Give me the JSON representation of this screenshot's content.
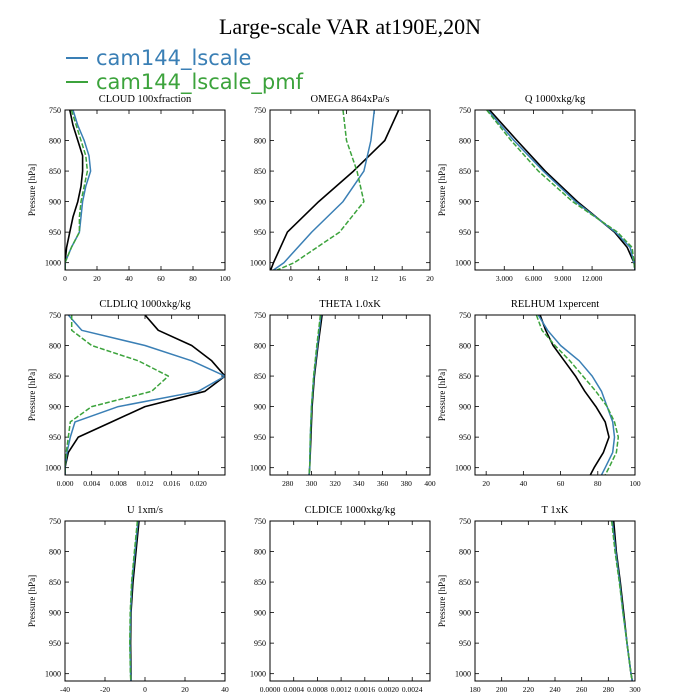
{
  "title": "Large-scale VAR at190E,20N",
  "legend": {
    "entries": [
      {
        "label": "cam144_lscale",
        "color": "#3a7fb5"
      },
      {
        "label": "cam144_lscale_pmf",
        "color": "#3ca33c"
      }
    ]
  },
  "colors": {
    "reference": "#000000",
    "lscale": "#3a7fb5",
    "pmf": "#3ca33c"
  },
  "chart_data": [
    {
      "type": "line",
      "title": "CLOUD  100xfraction",
      "ylabel": "Pressure [hPa]",
      "ylim": [
        1012,
        750
      ],
      "yticks": [
        750,
        800,
        850,
        900,
        950,
        1000
      ],
      "xlim": [
        0,
        100
      ],
      "xticks": [
        0,
        20,
        40,
        60,
        80,
        100
      ],
      "xticklabels": [
        "0",
        "20",
        "40",
        "60",
        "80",
        "100"
      ],
      "y": [
        750,
        775,
        800,
        825,
        850,
        875,
        900,
        925,
        950,
        975,
        1000,
        1012
      ],
      "series": [
        {
          "x": [
            3,
            5,
            8,
            11,
            11,
            10,
            8,
            5,
            3,
            1,
            0,
            0
          ]
        },
        {
          "x": [
            5,
            8,
            12,
            15,
            16,
            13,
            11,
            10,
            9,
            4,
            0,
            0
          ]
        },
        {
          "x": [
            4,
            7,
            10,
            13,
            14,
            12,
            10,
            9,
            9,
            4,
            0,
            0
          ]
        }
      ]
    },
    {
      "type": "line",
      "title": "OMEGA  864xPa/s",
      "ylabel": "",
      "ylim": [
        1012,
        750
      ],
      "yticks": [
        750,
        800,
        850,
        900,
        950,
        1000
      ],
      "xlim": [
        -3,
        20
      ],
      "xticks": [
        0,
        4,
        8,
        12,
        16,
        20
      ],
      "xticklabels": [
        "0",
        "4",
        "8",
        "12",
        "16",
        "20"
      ],
      "y": [
        750,
        800,
        850,
        900,
        950,
        1000,
        1012
      ],
      "series": [
        {
          "x": [
            15.5,
            13.5,
            9.0,
            4.0,
            -0.5,
            -2.5,
            -2.9
          ]
        },
        {
          "x": [
            12.0,
            11.5,
            10.5,
            7.5,
            3.0,
            -1.0,
            -2.5
          ]
        },
        {
          "x": [
            7.5,
            8.0,
            9.5,
            10.5,
            7.0,
            0.5,
            -2.0
          ]
        }
      ]
    },
    {
      "type": "line",
      "title": "Q  1000xkg/kg",
      "ylabel": "Pressure [hPa]",
      "ylim": [
        1012,
        750
      ],
      "yticks": [
        750,
        800,
        850,
        900,
        950,
        1000
      ],
      "xlim": [
        0,
        16.4
      ],
      "xticks": [
        3,
        6,
        9,
        12
      ],
      "xticklabels": [
        "3.000",
        "6.000",
        "9.000",
        "12.000"
      ],
      "y": [
        750,
        800,
        850,
        900,
        950,
        975,
        1000,
        1012
      ],
      "series": [
        {
          "x": [
            1.5,
            4.3,
            7.2,
            10.5,
            14.3,
            15.6,
            16.3,
            16.4
          ]
        },
        {
          "x": [
            1.3,
            4.0,
            7.0,
            10.3,
            14.4,
            15.9,
            16.3,
            16.4
          ]
        },
        {
          "x": [
            1.2,
            3.7,
            6.5,
            10.0,
            14.6,
            16.1,
            16.3,
            16.4
          ]
        }
      ]
    },
    {
      "type": "line",
      "title": "CLDLIQ  1000xkg/kg",
      "ylabel": "Pressure [hPa]",
      "ylim": [
        1012,
        750
      ],
      "yticks": [
        750,
        800,
        850,
        900,
        950,
        1000
      ],
      "xlim": [
        0,
        0.024
      ],
      "xticks": [
        0,
        0.004,
        0.008,
        0.012,
        0.016,
        0.02
      ],
      "xticklabels": [
        "0.000",
        "0.004",
        "0.008",
        "0.012",
        "0.016",
        "0.020"
      ],
      "y": [
        750,
        775,
        800,
        825,
        850,
        875,
        900,
        925,
        950,
        975,
        1000,
        1012
      ],
      "series": [
        {
          "x": [
            0.012,
            0.014,
            0.019,
            0.022,
            0.024,
            0.021,
            0.012,
            0.007,
            0.002,
            0.0005,
            0,
            0
          ]
        },
        {
          "x": [
            0.0005,
            0.0025,
            0.012,
            0.019,
            0.024,
            0.02,
            0.008,
            0.0015,
            0.0008,
            0.0003,
            0,
            0
          ]
        },
        {
          "x": [
            0.001,
            0.001,
            0.004,
            0.011,
            0.0155,
            0.013,
            0.004,
            0.0008,
            0.0005,
            0.0002,
            0,
            0
          ]
        }
      ]
    },
    {
      "type": "line",
      "title": "THETA  1.0xK",
      "ylabel": "",
      "ylim": [
        1012,
        750
      ],
      "yticks": [
        750,
        800,
        850,
        900,
        950,
        1000
      ],
      "xlim": [
        265,
        400
      ],
      "xticks": [
        280,
        300,
        320,
        340,
        360,
        380,
        400
      ],
      "xticklabels": [
        "280",
        "300",
        "320",
        "340",
        "360",
        "380",
        "400"
      ],
      "y": [
        750,
        800,
        850,
        900,
        950,
        1000,
        1012
      ],
      "series": [
        {
          "x": [
            309,
            305.5,
            302.5,
            300.5,
            299.5,
            298.5,
            298
          ]
        },
        {
          "x": [
            308,
            305,
            302,
            300,
            299,
            298.5,
            298
          ]
        },
        {
          "x": [
            307.5,
            304.5,
            301.8,
            300,
            299,
            298.5,
            298
          ]
        }
      ]
    },
    {
      "type": "line",
      "title": "RELHUM  1xpercent",
      "ylabel": "Pressure [hPa]",
      "ylim": [
        1012,
        750
      ],
      "yticks": [
        750,
        800,
        850,
        900,
        950,
        1000
      ],
      "xlim": [
        14,
        100
      ],
      "xticks": [
        20,
        40,
        60,
        80,
        100
      ],
      "xticklabels": [
        "20",
        "40",
        "60",
        "80",
        "100"
      ],
      "y": [
        750,
        775,
        800,
        825,
        850,
        875,
        900,
        925,
        950,
        975,
        1000,
        1012
      ],
      "series": [
        {
          "x": [
            49,
            52,
            56,
            62,
            68,
            73,
            79,
            84,
            86,
            83,
            78,
            76
          ]
        },
        {
          "x": [
            48,
            53,
            60,
            70,
            77,
            82,
            85,
            88,
            89,
            88,
            84,
            82
          ]
        },
        {
          "x": [
            47,
            50,
            57,
            65,
            72,
            79,
            85,
            89,
            91,
            90,
            86,
            84
          ]
        }
      ]
    },
    {
      "type": "line",
      "title": "U  1xm/s",
      "ylabel": "Pressure [hPa]",
      "ylim": [
        1012,
        750
      ],
      "yticks": [
        750,
        800,
        850,
        900,
        950,
        1000
      ],
      "xlim": [
        -40,
        40
      ],
      "xticks": [
        -40,
        -20,
        0,
        20,
        40
      ],
      "xticklabels": [
        "-40",
        "-20",
        "0",
        "20",
        "40"
      ],
      "y": [
        750,
        800,
        850,
        900,
        950,
        1000,
        1012
      ],
      "series": [
        {
          "x": [
            -3,
            -4.5,
            -6,
            -7,
            -7.2,
            -7,
            -7
          ]
        },
        {
          "x": [
            -3.5,
            -5,
            -6.5,
            -7.2,
            -7.5,
            -7.2,
            -7
          ]
        },
        {
          "x": [
            -3.8,
            -5.3,
            -6.7,
            -7.4,
            -7.6,
            -7.3,
            -7.1
          ]
        }
      ]
    },
    {
      "type": "line",
      "title": "CLDICE  1000xkg/kg",
      "ylabel": "",
      "ylim": [
        1012,
        750
      ],
      "yticks": [
        750,
        800,
        850,
        900,
        950,
        1000
      ],
      "xlim": [
        0,
        0.0027
      ],
      "xticks": [
        0,
        0.0004,
        0.0008,
        0.0012,
        0.0016,
        0.002,
        0.0024
      ],
      "xticklabels": [
        "0.0000",
        "0.0004",
        "0.0008",
        "0.0012",
        "0.0016",
        "0.0020",
        "0.0024"
      ],
      "y": [],
      "series": []
    },
    {
      "type": "line",
      "title": "T  1xK",
      "ylabel": "Pressure [hPa]",
      "ylim": [
        1012,
        750
      ],
      "yticks": [
        750,
        800,
        850,
        900,
        950,
        1000
      ],
      "xlim": [
        180,
        300
      ],
      "xticks": [
        180,
        200,
        220,
        240,
        260,
        280,
        300
      ],
      "xticklabels": [
        "180",
        "200",
        "220",
        "240",
        "260",
        "280",
        "300"
      ],
      "y": [
        750,
        800,
        850,
        900,
        950,
        1000,
        1012
      ],
      "series": [
        {
          "x": [
            284,
            286,
            289,
            291.5,
            294,
            297,
            298
          ]
        },
        {
          "x": [
            283,
            285.5,
            288.5,
            291,
            294,
            297,
            298
          ]
        },
        {
          "x": [
            282.5,
            285,
            288.2,
            291,
            294,
            297,
            298
          ]
        }
      ]
    }
  ]
}
